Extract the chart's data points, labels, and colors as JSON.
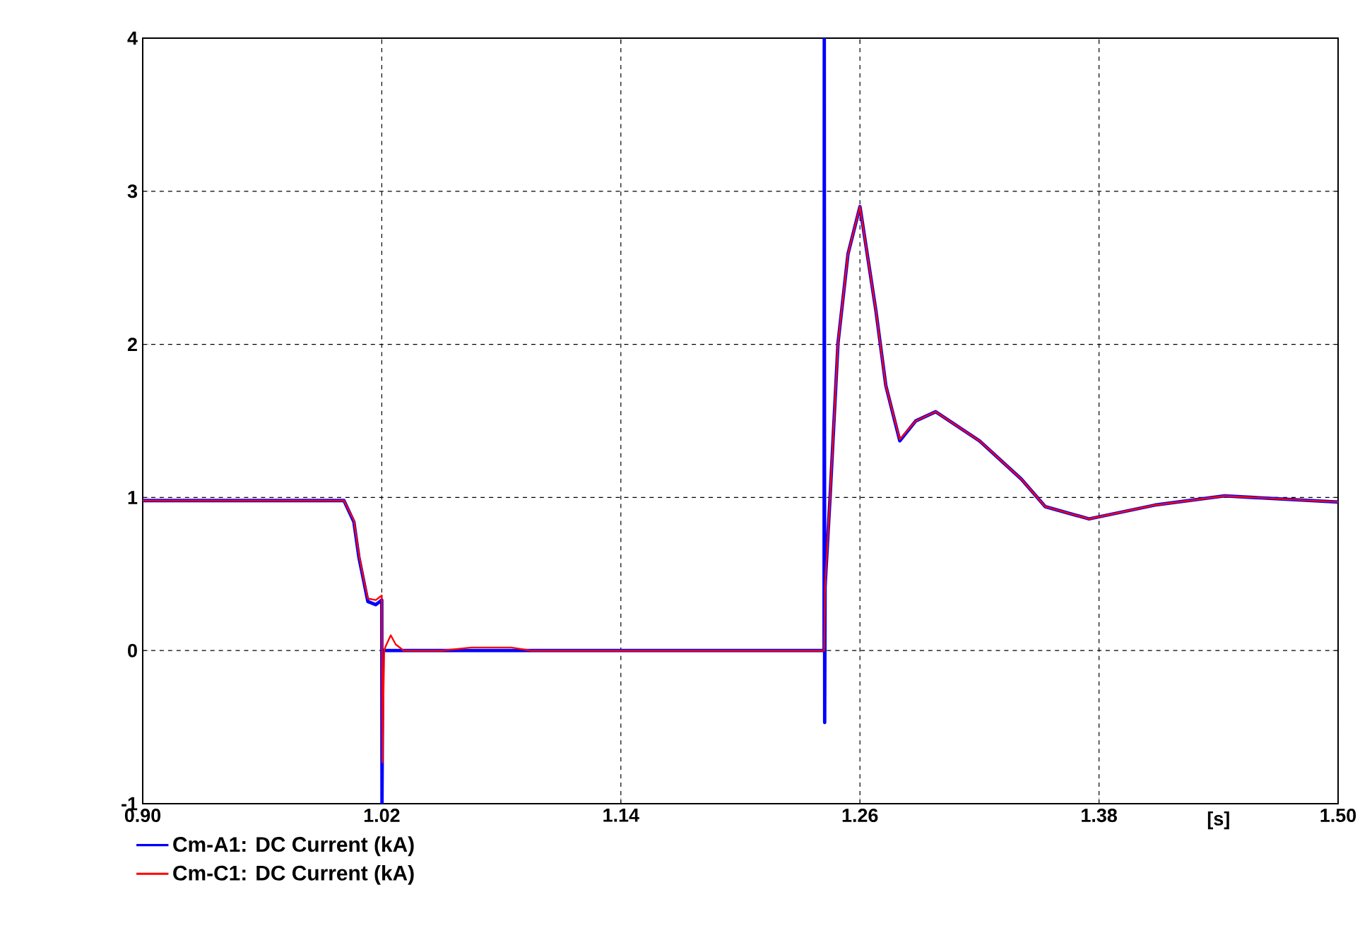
{
  "chart_data": {
    "type": "line",
    "xlabel": "[s]",
    "xlim": [
      0.9,
      1.5
    ],
    "ylim": [
      -1,
      4
    ],
    "xticks": [
      {
        "value": 0.9,
        "label": "0.90"
      },
      {
        "value": 1.02,
        "label": "1.02"
      },
      {
        "value": 1.14,
        "label": "1.14"
      },
      {
        "value": 1.26,
        "label": "1.26"
      },
      {
        "value": 1.38,
        "label": "1.38"
      },
      {
        "value": 1.5,
        "label": "1.50"
      }
    ],
    "yticks": [
      -1,
      0,
      1,
      2,
      3,
      4
    ],
    "grid": true,
    "legend": "bottom left",
    "marker": "none",
    "line_style": "solid",
    "series": [
      {
        "name": "Cm-A1: DC Current (kA)",
        "color": "#0000ff",
        "x": [
          0.9,
          1.001,
          1.006,
          1.0085,
          1.011,
          1.013,
          1.017,
          1.019,
          1.02,
          1.0201,
          1.0205,
          1.242,
          1.2421,
          1.2423,
          1.2425,
          1.245,
          1.249,
          1.254,
          1.26,
          1.268,
          1.273,
          1.28,
          1.288,
          1.298,
          1.32,
          1.341,
          1.353,
          1.375,
          1.408,
          1.443,
          1.5
        ],
        "values": [
          0.98,
          0.98,
          0.84,
          0.61,
          0.45,
          0.32,
          0.3,
          0.32,
          0.33,
          -1,
          0,
          0,
          4,
          -0.47,
          0.42,
          1.0,
          2.01,
          2.59,
          2.9,
          2.22,
          1.73,
          1.37,
          1.5,
          1.56,
          1.37,
          1.12,
          0.94,
          0.86,
          0.95,
          1.01,
          0.97
        ]
      },
      {
        "name": "Cm-C1: DC Current (kA)",
        "color": "#ff0000",
        "x": [
          0.9,
          1.001,
          1.006,
          1.0085,
          1.011,
          1.013,
          1.017,
          1.019,
          1.02,
          1.0203,
          1.0212,
          1.022,
          1.0245,
          1.027,
          1.031,
          1.05,
          1.065,
          1.085,
          1.095,
          1.242,
          1.2425,
          1.245,
          1.249,
          1.254,
          1.26,
          1.268,
          1.273,
          1.28,
          1.288,
          1.298,
          1.32,
          1.341,
          1.353,
          1.375,
          1.408,
          1.443,
          1.5
        ],
        "values": [
          0.98,
          0.98,
          0.85,
          0.63,
          0.46,
          0.34,
          0.33,
          0.35,
          0.36,
          -0.73,
          0,
          0.03,
          0.1,
          0.04,
          0,
          0,
          0.02,
          0.02,
          0,
          0,
          0.42,
          1.0,
          2.01,
          2.59,
          2.9,
          2.22,
          1.73,
          1.38,
          1.5,
          1.56,
          1.37,
          1.12,
          0.94,
          0.86,
          0.95,
          1.01,
          0.97
        ]
      }
    ]
  }
}
